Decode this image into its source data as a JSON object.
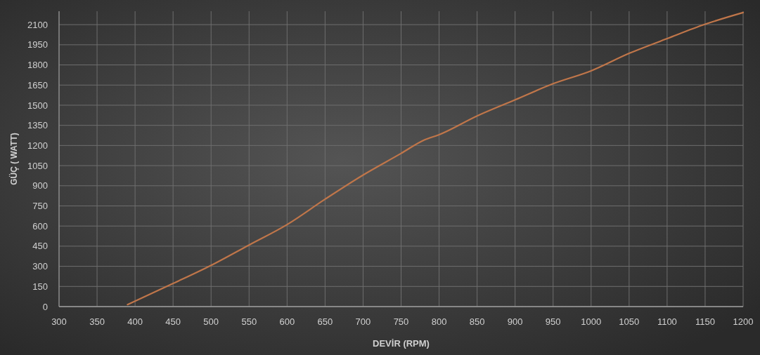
{
  "chart_data": {
    "type": "line",
    "xlabel": "DEVİR (RPM)",
    "ylabel": "GÜÇ ( WATT)",
    "x": [
      390,
      450,
      500,
      550,
      600,
      650,
      700,
      750,
      780,
      800,
      850,
      900,
      950,
      1000,
      1050,
      1100,
      1150,
      1200
    ],
    "series": [
      {
        "color": "#c0764a",
        "values": [
          15,
          172,
          307,
          459,
          611,
          800,
          980,
          1141,
          1240,
          1280,
          1420,
          1540,
          1660,
          1756,
          1886,
          1996,
          2103,
          2190
        ]
      }
    ],
    "xlim": [
      300,
      1200
    ],
    "xticks": [
      300,
      350,
      400,
      450,
      500,
      550,
      600,
      650,
      700,
      750,
      800,
      850,
      900,
      950,
      1000,
      1050,
      1100,
      1150,
      1200
    ],
    "ylim": [
      0,
      2200
    ],
    "yticks": [
      0,
      150,
      300,
      450,
      600,
      750,
      900,
      1050,
      1200,
      1350,
      1500,
      1650,
      1800,
      1950,
      2100
    ],
    "grid": true,
    "marker": "none",
    "line_style": "solid"
  }
}
